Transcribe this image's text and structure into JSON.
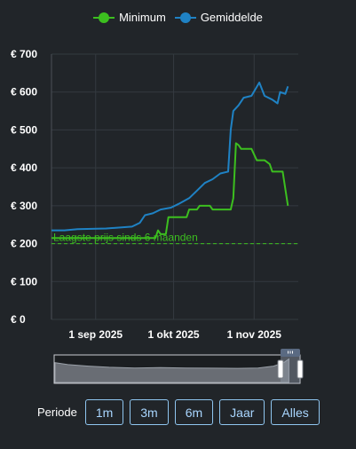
{
  "legend": {
    "items": [
      {
        "label": "Minimum",
        "color": "#3cbf1f"
      },
      {
        "label": "Gemiddelde",
        "color": "#1f82c4"
      }
    ]
  },
  "annotation": {
    "label": "Laagste prijs sinds 6 maanden",
    "value": 200
  },
  "period": {
    "label": "Periode",
    "buttons": [
      "1m",
      "3m",
      "6m",
      "Jaar",
      "Alles"
    ]
  },
  "navigator": {
    "handle_icon": "grip-icon"
  },
  "chart_data": {
    "type": "line",
    "x_unit": "date",
    "xlim": [
      "2025-08-15",
      "2025-11-18"
    ],
    "x_ticks": [
      {
        "date": "2025-09-01",
        "label": "1 sep 2025"
      },
      {
        "date": "2025-10-01",
        "label": "1 okt 2025"
      },
      {
        "date": "2025-11-01",
        "label": "1 nov 2025"
      }
    ],
    "ylim": [
      0,
      700
    ],
    "y_ticks": [
      {
        "value": 0,
        "label": "€ 0"
      },
      {
        "value": 100,
        "label": "€ 100"
      },
      {
        "value": 200,
        "label": "€ 200"
      },
      {
        "value": 300,
        "label": "€ 300"
      },
      {
        "value": 400,
        "label": "€ 400"
      },
      {
        "value": 500,
        "label": "€ 500"
      },
      {
        "value": 600,
        "label": "€ 600"
      },
      {
        "value": 700,
        "label": "€ 700"
      }
    ],
    "grid": true,
    "legend_position": "top-center",
    "series": [
      {
        "name": "Minimum",
        "color": "#3cbf1f",
        "points": [
          [
            "2025-08-15",
            215
          ],
          [
            "2025-09-24",
            215
          ],
          [
            "2025-09-25",
            235
          ],
          [
            "2025-09-26",
            225
          ],
          [
            "2025-09-28",
            225
          ],
          [
            "2025-09-29",
            270
          ],
          [
            "2025-10-06",
            270
          ],
          [
            "2025-10-07",
            290
          ],
          [
            "2025-10-10",
            290
          ],
          [
            "2025-10-11",
            300
          ],
          [
            "2025-10-15",
            300
          ],
          [
            "2025-10-16",
            290
          ],
          [
            "2025-10-23",
            290
          ],
          [
            "2025-10-24",
            320
          ],
          [
            "2025-10-25",
            465
          ],
          [
            "2025-10-26",
            460
          ],
          [
            "2025-10-27",
            450
          ],
          [
            "2025-10-31",
            450
          ],
          [
            "2025-11-02",
            420
          ],
          [
            "2025-11-05",
            420
          ],
          [
            "2025-11-07",
            410
          ],
          [
            "2025-11-08",
            390
          ],
          [
            "2025-11-12",
            390
          ],
          [
            "2025-11-14",
            300
          ]
        ]
      },
      {
        "name": "Gemiddelde",
        "color": "#1f82c4",
        "points": [
          [
            "2025-08-15",
            235
          ],
          [
            "2025-08-20",
            235
          ],
          [
            "2025-08-25",
            238
          ],
          [
            "2025-09-05",
            240
          ],
          [
            "2025-09-15",
            245
          ],
          [
            "2025-09-18",
            255
          ],
          [
            "2025-09-20",
            275
          ],
          [
            "2025-09-23",
            280
          ],
          [
            "2025-09-26",
            290
          ],
          [
            "2025-09-30",
            295
          ],
          [
            "2025-10-03",
            305
          ],
          [
            "2025-10-07",
            320
          ],
          [
            "2025-10-10",
            340
          ],
          [
            "2025-10-13",
            360
          ],
          [
            "2025-10-16",
            370
          ],
          [
            "2025-10-19",
            385
          ],
          [
            "2025-10-22",
            390
          ],
          [
            "2025-10-23",
            500
          ],
          [
            "2025-10-24",
            550
          ],
          [
            "2025-10-26",
            565
          ],
          [
            "2025-10-28",
            585
          ],
          [
            "2025-10-31",
            590
          ],
          [
            "2025-11-03",
            625
          ],
          [
            "2025-11-05",
            590
          ],
          [
            "2025-11-08",
            580
          ],
          [
            "2025-11-10",
            570
          ],
          [
            "2025-11-11",
            600
          ],
          [
            "2025-11-13",
            595
          ],
          [
            "2025-11-14",
            615
          ]
        ]
      }
    ]
  }
}
